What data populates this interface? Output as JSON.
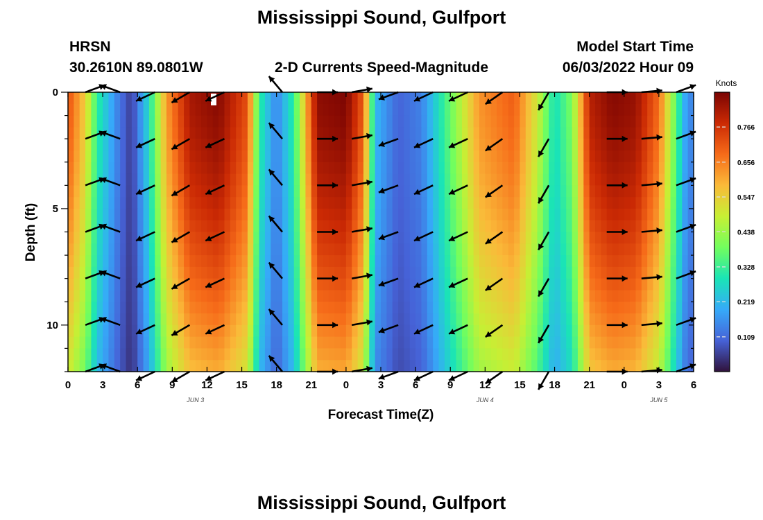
{
  "title": "Mississippi Sound, Gulfport",
  "bottom_title": "Mississippi Sound, Gulfport",
  "station_id": "HRSN",
  "station_coords": "30.2610N  89.0801W",
  "model_start_label": "Model Start Time",
  "model_start_value": "06/03/2022 Hour 09",
  "colorbar_unit": "Knots",
  "chart_data": {
    "type": "heatmap",
    "title": "2-D Currents Speed-Magnitude",
    "xlabel": "Forecast Time(Z)",
    "ylabel": "Depth (ft)",
    "x_tick_labels": [
      "0",
      "3",
      "6",
      "9",
      "12",
      "15",
      "18",
      "21",
      "0",
      "3",
      "6",
      "9",
      "12",
      "15",
      "18",
      "21",
      "0",
      "3",
      "6"
    ],
    "x_tick_hours": [
      0,
      3,
      6,
      9,
      12,
      15,
      18,
      21,
      24,
      27,
      30,
      33,
      36,
      39,
      42,
      45,
      48,
      51,
      54
    ],
    "xlim_hours": [
      0,
      54
    ],
    "date_labels": [
      {
        "label": "JUN 3",
        "hour": 11
      },
      {
        "label": "JUN 4",
        "hour": 36
      },
      {
        "label": "JUN 5",
        "hour": 51
      }
    ],
    "y_tick_labels": [
      "0",
      "5",
      "10"
    ],
    "y_tick_values": [
      0,
      5,
      10
    ],
    "ylim_ft": [
      0,
      12
    ],
    "y_inverted": true,
    "colorbar_ticks": [
      0.109,
      0.219,
      0.328,
      0.438,
      0.547,
      0.656,
      0.766
    ],
    "colorbar_range": [
      0.0,
      0.875
    ],
    "colormap": [
      "#30123b",
      "#4662d7",
      "#36aaf9",
      "#1ae4b6",
      "#72fe5e",
      "#c7ef34",
      "#faba39",
      "#f66b19",
      "#cb2a04",
      "#7a0403"
    ],
    "speed_profile_surface_hours": [
      0,
      1.5,
      2.5,
      4.5,
      5.5,
      7,
      8.5,
      10.5,
      13,
      15.5,
      16.5,
      18,
      19.5,
      21.5,
      24,
      25.5,
      26.5,
      28.5,
      30.5,
      33,
      35.5,
      38.5,
      40.5,
      42,
      43.5,
      45,
      47,
      49,
      51,
      52.5,
      53.2,
      54
    ],
    "speed_profile_surface_knots": [
      0.72,
      0.55,
      0.32,
      0.12,
      0.05,
      0.28,
      0.62,
      0.82,
      0.86,
      0.72,
      0.32,
      0.14,
      0.32,
      0.85,
      0.87,
      0.7,
      0.22,
      0.1,
      0.14,
      0.38,
      0.63,
      0.7,
      0.5,
      0.28,
      0.4,
      0.8,
      0.86,
      0.84,
      0.68,
      0.36,
      0.2,
      0.13
    ],
    "depth_factor_note": "speed decreases toward bottom (12 ft)",
    "arrow_depths_ft": [
      0,
      2,
      4,
      6,
      8,
      10,
      12
    ],
    "arrow_hours": [
      1.5,
      4.5,
      7.5,
      10.5,
      13.5,
      18.5,
      21.5,
      24.5,
      28.5,
      31.5,
      34.5,
      37.5,
      41.5,
      46.5,
      49.5,
      52.5
    ],
    "arrow_directions_deg": [
      20,
      160,
      205,
      210,
      205,
      130,
      0,
      10,
      200,
      205,
      205,
      215,
      240,
      0,
      5,
      20
    ]
  }
}
